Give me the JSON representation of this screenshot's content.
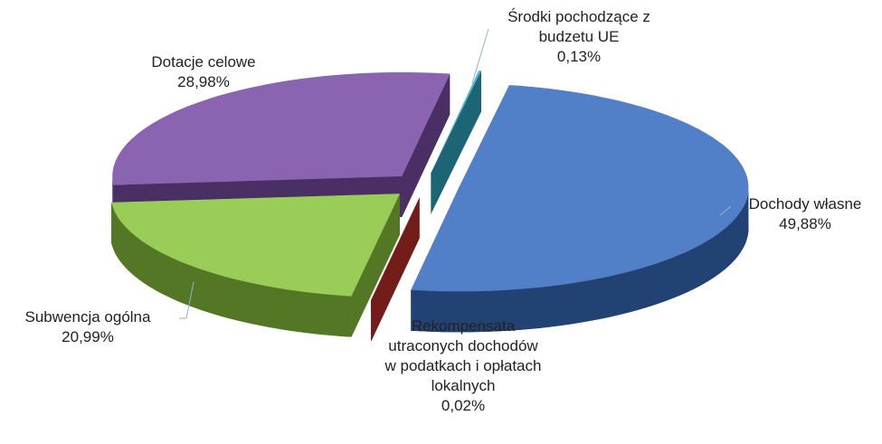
{
  "chart_data": {
    "type": "pie",
    "categories": [
      "Dochody własne",
      "Rekompensata utraconych dochodów w podatkach i opłatach lokalnych",
      "Subwencja ogólna",
      "Dotacje celowe",
      "Środki pochodzące z budzetu UE"
    ],
    "values": [
      49.88,
      0.02,
      20.99,
      28.98,
      0.13
    ],
    "value_labels": [
      "49,88%",
      "0,02%",
      "20,99%",
      "28,98%",
      "0,13%"
    ],
    "colors": [
      "#3b6fc1",
      "#c0312d",
      "#8dc640",
      "#7a4fa6",
      "#31a9c4"
    ]
  }
}
